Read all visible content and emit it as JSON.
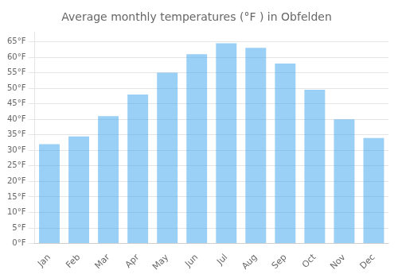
{
  "chart_data": {
    "type": "bar",
    "title": "Average monthly temperatures (°F ) in Obfelden",
    "categories": [
      "Jan",
      "Feb",
      "Mar",
      "Apr",
      "May",
      "Jun",
      "Jul",
      "Aug",
      "Sep",
      "Oct",
      "Nov",
      "Dec"
    ],
    "values": [
      32,
      34.5,
      41,
      48,
      55,
      61,
      64.5,
      63,
      58,
      49.5,
      40,
      34
    ],
    "ylim": [
      0,
      68
    ],
    "yticks": [
      {
        "value": 0,
        "label": "0°F"
      },
      {
        "value": 5,
        "label": "5°F"
      },
      {
        "value": 10,
        "label": "10°F"
      },
      {
        "value": 15,
        "label": "15°F"
      },
      {
        "value": 20,
        "label": "20°F"
      },
      {
        "value": 25,
        "label": "25°F"
      },
      {
        "value": 30,
        "label": "30°F"
      },
      {
        "value": 35,
        "label": "35°F"
      },
      {
        "value": 40,
        "label": "40°F"
      },
      {
        "value": 45,
        "label": "45°F"
      },
      {
        "value": 50,
        "label": "50°F"
      },
      {
        "value": 55,
        "label": "55°F"
      },
      {
        "value": 60,
        "label": "60°F"
      },
      {
        "value": 65,
        "label": "65°F"
      }
    ],
    "grid": true
  }
}
